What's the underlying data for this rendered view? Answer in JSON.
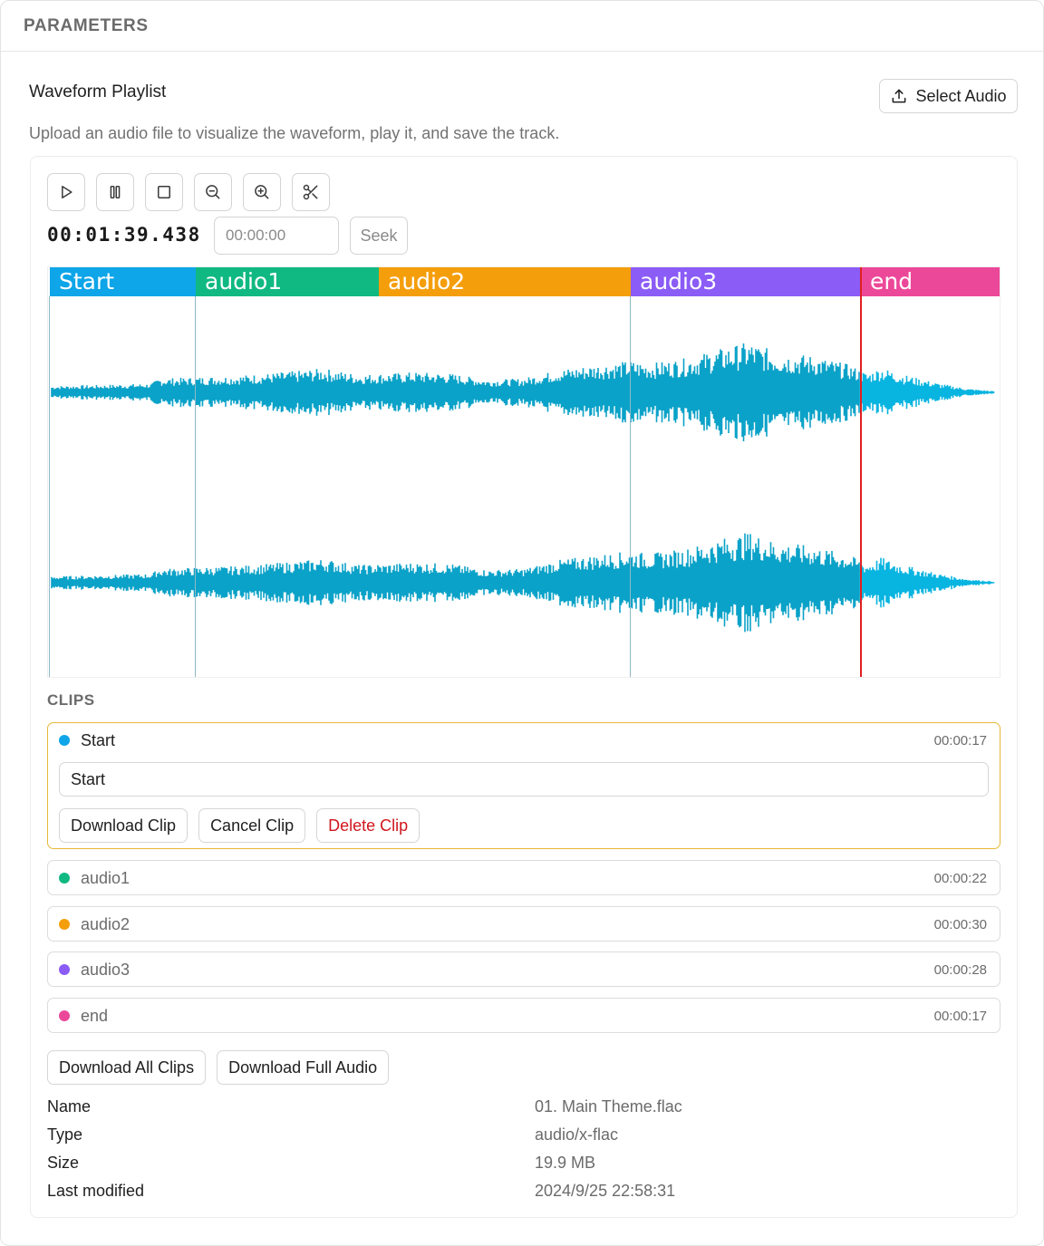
{
  "panel": {
    "title": "PARAMETERS"
  },
  "widget": {
    "title": "Waveform Playlist",
    "select_button": "Select Audio",
    "description": "Upload an audio file to visualize the waveform, play it, and save the track."
  },
  "toolbar": {
    "buttons": [
      {
        "name": "play",
        "icon": "play-icon"
      },
      {
        "name": "pause",
        "icon": "pause-icon"
      },
      {
        "name": "stop",
        "icon": "stop-icon"
      },
      {
        "name": "zoom-out",
        "icon": "zoom-out-icon"
      },
      {
        "name": "zoom-in",
        "icon": "zoom-in-icon"
      },
      {
        "name": "cut",
        "icon": "scissors-icon"
      }
    ],
    "time": "00:01:39.438",
    "seek_placeholder": "00:00:00",
    "seek_button": "Seek"
  },
  "regions": [
    {
      "label": "Start",
      "color": "#0ea5e9"
    },
    {
      "label": "audio1",
      "color": "#10b981"
    },
    {
      "label": "audio2",
      "color": "#f59e0b"
    },
    {
      "label": "audio3",
      "color": "#8b5cf6"
    },
    {
      "label": "end",
      "color": "#ec4899"
    }
  ],
  "waveform": {
    "color": "#0aa2c8",
    "played_color": "#0aa2c8",
    "remaining_color": "#08b4e0",
    "cursor_color": "#e02020"
  },
  "clips": {
    "heading": "CLIPS",
    "items": [
      {
        "name": "Start",
        "duration": "00:00:17",
        "color": "#0ea5e9",
        "active": true,
        "input_value": "Start"
      },
      {
        "name": "audio1",
        "duration": "00:00:22",
        "color": "#10b981"
      },
      {
        "name": "audio2",
        "duration": "00:00:30",
        "color": "#f59e0b"
      },
      {
        "name": "audio3",
        "duration": "00:00:28",
        "color": "#8b5cf6"
      },
      {
        "name": "end",
        "duration": "00:00:17",
        "color": "#ec4899"
      }
    ],
    "actions": {
      "download": "Download Clip",
      "cancel": "Cancel Clip",
      "delete": "Delete Clip"
    }
  },
  "bottom_actions": {
    "download_all": "Download All Clips",
    "download_full": "Download Full Audio"
  },
  "file_info": [
    {
      "key": "Name",
      "value": "01. Main Theme.flac"
    },
    {
      "key": "Type",
      "value": "audio/x-flac"
    },
    {
      "key": "Size",
      "value": "19.9 MB"
    },
    {
      "key": "Last modified",
      "value": "2024/9/25 22:58:31"
    }
  ]
}
